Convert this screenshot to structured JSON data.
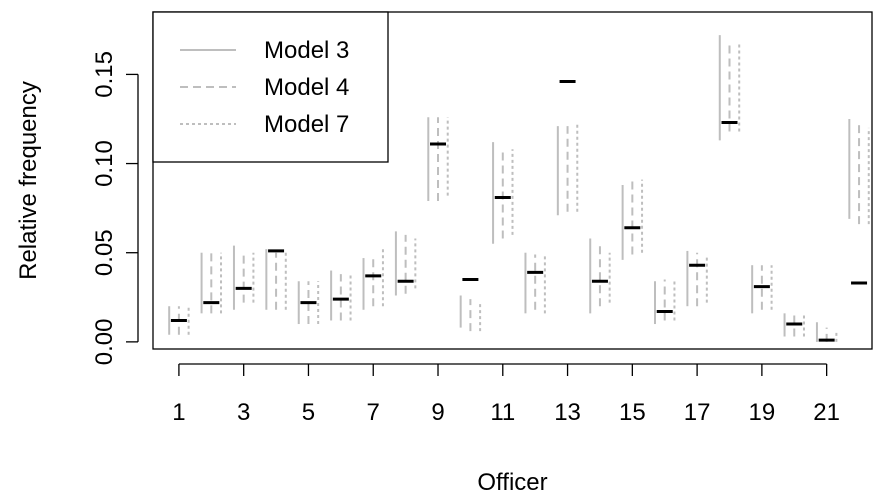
{
  "chart_data": {
    "type": "interval",
    "xlabel": "Officer",
    "ylabel": "Relative frequency",
    "x_ticks": [
      1,
      3,
      5,
      7,
      9,
      11,
      13,
      15,
      17,
      19,
      21
    ],
    "y_ticks": [
      "0.00",
      "0.05",
      "0.10",
      "0.15"
    ],
    "xlim": [
      0.2,
      22.4
    ],
    "ylim": [
      -0.004,
      0.185
    ],
    "legend_position": "top-left",
    "series": [
      {
        "name": "Model 3",
        "style": "solid"
      },
      {
        "name": "Model 4",
        "style": "dashed"
      },
      {
        "name": "Model 7",
        "style": "dotted"
      }
    ],
    "colors": {
      "interval": "#bebebe",
      "observed": "#000000"
    },
    "officers": [
      1,
      2,
      3,
      4,
      5,
      6,
      7,
      8,
      9,
      10,
      11,
      12,
      13,
      14,
      15,
      16,
      17,
      18,
      19,
      20,
      21,
      22
    ],
    "observed": [
      0.012,
      0.022,
      0.03,
      0.051,
      0.022,
      0.024,
      0.037,
      0.034,
      0.111,
      0.035,
      0.081,
      0.039,
      0.146,
      0.034,
      0.064,
      0.017,
      0.043,
      0.123,
      0.031,
      0.01,
      0.001,
      0.033
    ],
    "intervals": {
      "Model 3": [
        [
          0.004,
          0.02
        ],
        [
          0.016,
          0.05
        ],
        [
          0.018,
          0.054
        ],
        [
          0.018,
          0.052
        ],
        [
          0.01,
          0.034
        ],
        [
          0.012,
          0.04
        ],
        [
          0.018,
          0.047
        ],
        [
          0.026,
          0.062
        ],
        [
          0.079,
          0.126
        ],
        [
          0.008,
          0.026
        ],
        [
          0.055,
          0.112
        ],
        [
          0.016,
          0.05
        ],
        [
          0.071,
          0.121
        ],
        [
          0.016,
          0.058
        ],
        [
          0.046,
          0.088
        ],
        [
          0.01,
          0.034
        ],
        [
          0.02,
          0.051
        ],
        [
          0.113,
          0.172
        ],
        [
          0.016,
          0.043
        ],
        [
          0.003,
          0.016
        ],
        [
          0.0,
          0.011
        ],
        [
          0.069,
          0.125
        ]
      ],
      "Model 4": [
        [
          0.004,
          0.02
        ],
        [
          0.016,
          0.05
        ],
        [
          0.022,
          0.05
        ],
        [
          0.018,
          0.05
        ],
        [
          0.01,
          0.034
        ],
        [
          0.012,
          0.038
        ],
        [
          0.02,
          0.048
        ],
        [
          0.027,
          0.06
        ],
        [
          0.079,
          0.126
        ],
        [
          0.006,
          0.024
        ],
        [
          0.058,
          0.108
        ],
        [
          0.018,
          0.049
        ],
        [
          0.073,
          0.121
        ],
        [
          0.02,
          0.055
        ],
        [
          0.049,
          0.09
        ],
        [
          0.012,
          0.035
        ],
        [
          0.02,
          0.05
        ],
        [
          0.118,
          0.167
        ],
        [
          0.018,
          0.043
        ],
        [
          0.003,
          0.016
        ],
        [
          0.0,
          0.008
        ],
        [
          0.066,
          0.122
        ]
      ],
      "Model 7": [
        [
          0.004,
          0.02
        ],
        [
          0.016,
          0.05
        ],
        [
          0.022,
          0.05
        ],
        [
          0.018,
          0.05
        ],
        [
          0.01,
          0.034
        ],
        [
          0.012,
          0.038
        ],
        [
          0.02,
          0.052
        ],
        [
          0.03,
          0.058
        ],
        [
          0.082,
          0.126
        ],
        [
          0.006,
          0.022
        ],
        [
          0.06,
          0.108
        ],
        [
          0.016,
          0.049
        ],
        [
          0.073,
          0.122
        ],
        [
          0.022,
          0.05
        ],
        [
          0.05,
          0.091
        ],
        [
          0.012,
          0.035
        ],
        [
          0.022,
          0.048
        ],
        [
          0.118,
          0.167
        ],
        [
          0.018,
          0.043
        ],
        [
          0.003,
          0.016
        ],
        [
          0.0,
          0.006
        ],
        [
          0.066,
          0.12
        ]
      ]
    }
  }
}
